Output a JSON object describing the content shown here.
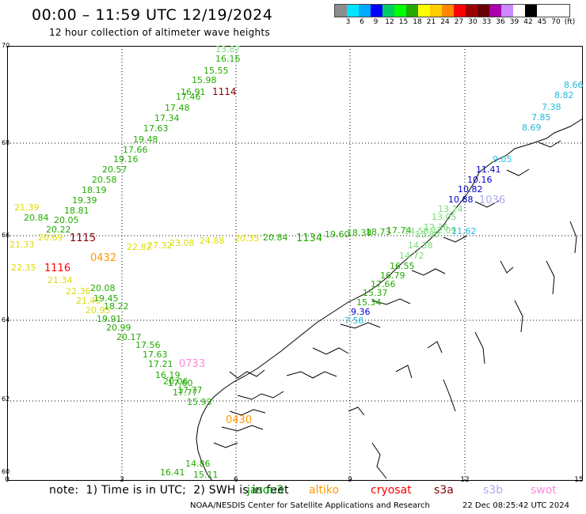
{
  "header": {
    "title": "00:00 – 11:59 UTC 12/19/2024",
    "subtitle": "12 hour collection of altimeter wave heights"
  },
  "legend": {
    "colors": [
      "#8c8c8c",
      "#00e5ff",
      "#00aaff",
      "#0000ff",
      "#00cc66",
      "#00ff00",
      "#22aa00",
      "#ffff00",
      "#ffcc00",
      "#ff8800",
      "#ff0000",
      "#990000",
      "#660000",
      "#aa00aa",
      "#cc88ff",
      "#ffffff",
      "#000000"
    ],
    "labels": [
      "3",
      "6",
      "9",
      "12",
      "15",
      "18",
      "21",
      "24",
      "27",
      "30",
      "33",
      "36",
      "39",
      "42",
      "45",
      "70",
      "(ft)"
    ]
  },
  "axes": {
    "y_ticks": [
      "70",
      "68",
      "66",
      "64",
      "62",
      "60"
    ],
    "x_ticks": [
      "0",
      "3",
      "6",
      "9",
      "12",
      "15"
    ]
  },
  "tracks": {
    "jason3_north": [
      "13.87",
      "16.16",
      "15.55",
      "15.98",
      "16.91",
      "17.46",
      "17.48",
      "17.34",
      "17.63",
      "19.48",
      "17.66",
      "19.16",
      "20.57",
      "20.58",
      "18.19",
      "19.39",
      "18.81",
      "20.05",
      "20.84",
      "20.22"
    ],
    "jason3_north_time": "1114",
    "jason3_south": [
      "20.95",
      "20.08",
      "19.45",
      "18.22",
      "19.91",
      "20.99",
      "20.17",
      "17.56",
      "17.63",
      "17.21",
      "17.60",
      "17.77",
      "15.93"
    ],
    "jason3_south2": [
      "14.86",
      "16.41",
      "15.11",
      "16.19"
    ],
    "altika_west": [
      "21.39",
      "21.33",
      "20.69",
      "22.35",
      "21.34",
      "22.36",
      "21.45"
    ],
    "altika_west_time": "0432",
    "cryosat_time": "1116",
    "s3a_time": "1115",
    "altika_east": [
      "22.82",
      "27.32",
      "23.08",
      "24.88",
      "20.84",
      "20.35"
    ],
    "sat_east_time": "1134",
    "east_green": [
      "19.60",
      "18.38",
      "18.73",
      "17.74",
      "14.58",
      "13.80",
      "14.72",
      "14.38",
      "16.55",
      "16.79",
      "17.66",
      "15.37",
      "15.34"
    ],
    "cyan_north": [
      "8.82",
      "7.38",
      "7.85",
      "8.69",
      "8.66",
      "9.05"
    ],
    "blue_north": [
      "11.41",
      "10.16",
      "10.82",
      "10.88"
    ],
    "blue_time": "1036",
    "light_green": [
      "13.24",
      "13.05",
      "12.36",
      "12.09",
      "11.62"
    ],
    "blue_south": [
      "9.36",
      "7.58"
    ],
    "swot_time": "0733",
    "altika_south_time": "0430",
    "south_misc": [
      "17.77",
      "20.06"
    ]
  },
  "note": {
    "text": "note:  1) Time is in UTC;  2) SWH is in feet",
    "satellites": [
      {
        "name": "jason3",
        "color": "#009900"
      },
      {
        "name": "altiko",
        "color": "#ff9900"
      },
      {
        "name": "cryosat",
        "color": "#ff0000"
      },
      {
        "name": "s3a",
        "color": "#880000"
      },
      {
        "name": "s3b",
        "color": "#aaaaee"
      },
      {
        "name": "swot",
        "color": "#ff88dd"
      }
    ]
  },
  "footer": {
    "credit": "NOAA/NESDIS Center for Satellite Applications and Research",
    "generated": "22 Dec 08:25:42 UTC 2024"
  }
}
